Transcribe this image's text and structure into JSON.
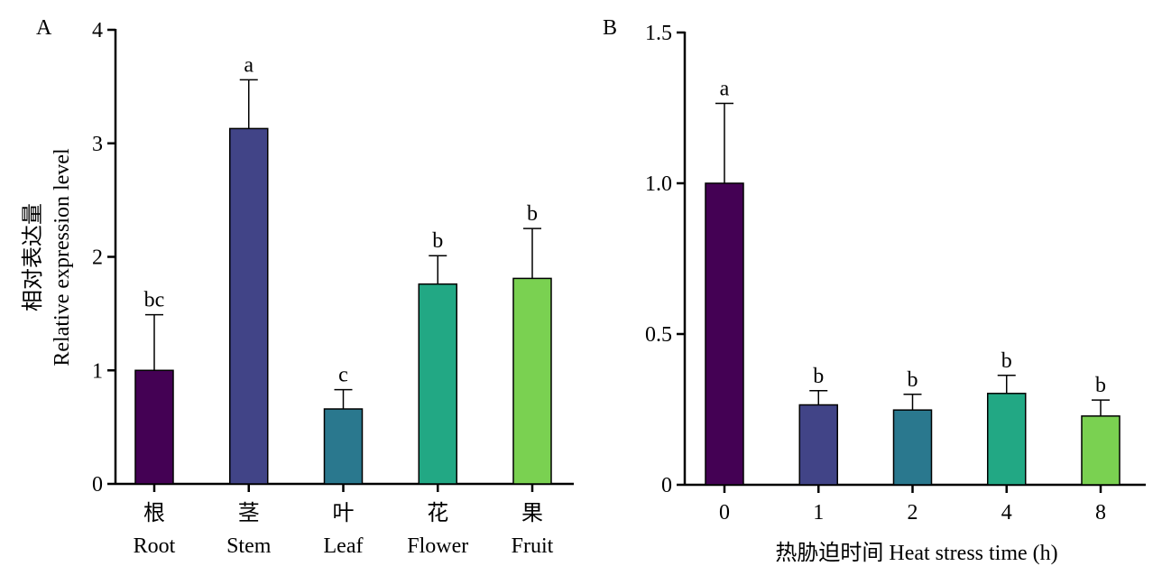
{
  "chart_data": [
    {
      "type": "bar",
      "panel_label": "A",
      "title": "",
      "ylabel_cn": "相对表达量",
      "ylabel": "Relative expression level",
      "xlabel": "",
      "ylim": [
        0,
        4
      ],
      "yticks": [
        "0",
        "1",
        "2",
        "3",
        "4"
      ],
      "yticks_values": [
        0,
        1,
        2,
        3,
        4
      ],
      "categories_cn": [
        "根",
        "茎",
        "叶",
        "花",
        "果"
      ],
      "categories": [
        "Root",
        "Stem",
        "Leaf",
        "Flower",
        "Fruit"
      ],
      "values": [
        1.0,
        3.13,
        0.66,
        1.76,
        1.81
      ],
      "errors": [
        0.49,
        0.43,
        0.17,
        0.25,
        0.44
      ],
      "significance": [
        "bc",
        "a",
        "c",
        "b",
        "b"
      ],
      "colors": [
        "#440154",
        "#414487",
        "#2a788e",
        "#22a884",
        "#7ad151"
      ],
      "grid": false,
      "legend": "none"
    },
    {
      "type": "bar",
      "panel_label": "B",
      "title": "",
      "ylabel": "",
      "xlabel": "热胁迫时间 Heat stress time (h)",
      "ylim": [
        0,
        1.5
      ],
      "yticks": [
        "0",
        "0.5",
        "1.0",
        "1.5"
      ],
      "yticks_values": [
        0,
        0.5,
        1.0,
        1.5
      ],
      "categories": [
        "0",
        "1",
        "2",
        "4",
        "8"
      ],
      "values": [
        1.0,
        0.265,
        0.248,
        0.303,
        0.228
      ],
      "errors": [
        0.265,
        0.047,
        0.052,
        0.06,
        0.053
      ],
      "significance": [
        "a",
        "b",
        "b",
        "b",
        "b"
      ],
      "colors": [
        "#440154",
        "#414487",
        "#2a788e",
        "#22a884",
        "#7ad151"
      ],
      "grid": false,
      "legend": "none"
    }
  ]
}
